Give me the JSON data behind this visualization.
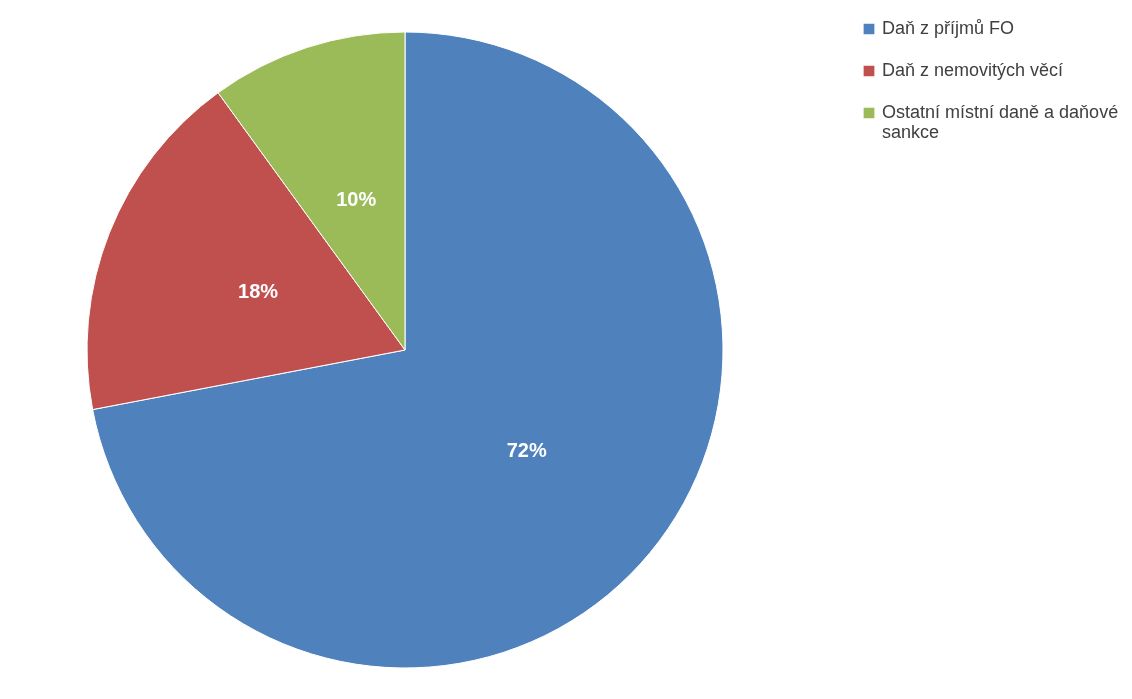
{
  "chart_data": {
    "type": "pie",
    "categories": [
      "Daň z příjmů FO",
      "Daň z nemovitých věcí",
      "Ostatní místní daně a daňové sankce"
    ],
    "values": [
      72,
      18,
      10
    ],
    "colors": [
      "#4f81bd",
      "#c0504d",
      "#9bbb59"
    ],
    "value_labels": [
      "72%",
      "18%",
      "10%"
    ],
    "legend": "right"
  }
}
